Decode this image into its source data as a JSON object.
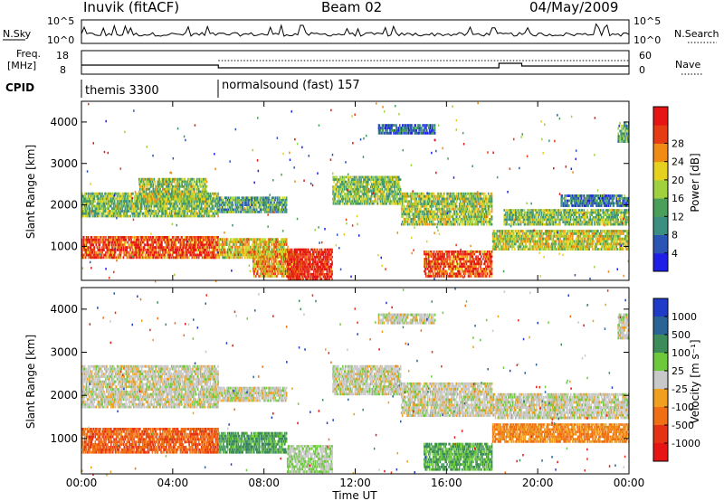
{
  "header": {
    "station": "Inuvik (fitACF)",
    "beam": "Beam 02",
    "date": "04/May/2009"
  },
  "labels": {
    "nsky": "N.Sky",
    "nsearch": "N.Search",
    "freq_line1": "Freq.",
    "freq_line2": "[MHz]",
    "nave": "Nave",
    "cpid": "CPID",
    "cpid_1": "themis 3300",
    "cpid_2": "normalsound (fast) 157"
  },
  "strip_ticks": {
    "noise_left": [
      "10^5",
      "10^0"
    ],
    "noise_right": [
      "10^5",
      "10^0"
    ],
    "freq_left": [
      "18",
      "8"
    ],
    "nave_right": [
      "60",
      "0"
    ]
  },
  "colors": {
    "ground_scatter": "#c8c8c8",
    "frame": "#000000"
  },
  "chart_data": [
    {
      "type": "heatmap",
      "name": "power",
      "xlabel": "",
      "ylabel": "Slant Range [km]",
      "yticks": [
        1000,
        2000,
        3000,
        4000
      ],
      "ylim": [
        180,
        4500
      ],
      "xlim": [
        0,
        24
      ],
      "colorbar_label": "Power [dB]",
      "colorbar_ticks": [
        "4",
        "8",
        "12",
        "16",
        "20",
        "24",
        "28"
      ],
      "colorbar_colors": [
        "#1e1ee6",
        "#2a55b4",
        "#3a8f82",
        "#4aa05a",
        "#9fd23c",
        "#e6d21e",
        "#f08c14",
        "#e63c14",
        "#e61414"
      ],
      "bands": [
        {
          "t0": 0.0,
          "t1": 6.0,
          "r0": 700,
          "r1": 1250,
          "level": 0.85
        },
        {
          "t0": 0.0,
          "t1": 6.0,
          "r0": 1700,
          "r1": 2300,
          "level": 0.45
        },
        {
          "t0": 2.5,
          "t1": 5.5,
          "r0": 2050,
          "r1": 2650,
          "level": 0.5
        },
        {
          "t0": 6.0,
          "t1": 9.0,
          "r0": 700,
          "r1": 1200,
          "level": 0.6
        },
        {
          "t0": 6.0,
          "t1": 9.0,
          "r0": 1800,
          "r1": 2200,
          "level": 0.35
        },
        {
          "t0": 7.5,
          "t1": 9.5,
          "r0": 250,
          "r1": 900,
          "level": 0.7
        },
        {
          "t0": 9.0,
          "t1": 11.0,
          "r0": 180,
          "r1": 950,
          "level": 0.95
        },
        {
          "t0": 11.0,
          "t1": 14.0,
          "r0": 2000,
          "r1": 2700,
          "level": 0.45
        },
        {
          "t0": 14.0,
          "t1": 18.0,
          "r0": 1500,
          "r1": 2300,
          "level": 0.5
        },
        {
          "t0": 15.0,
          "t1": 18.0,
          "r0": 250,
          "r1": 900,
          "level": 0.85
        },
        {
          "t0": 18.0,
          "t1": 24.0,
          "r0": 900,
          "r1": 1400,
          "level": 0.55
        },
        {
          "t0": 18.5,
          "t1": 24.0,
          "r0": 1500,
          "r1": 1900,
          "level": 0.45
        },
        {
          "t0": 21.0,
          "t1": 24.0,
          "r0": 1950,
          "r1": 2250,
          "level": 0.25
        },
        {
          "t0": 13.0,
          "t1": 15.5,
          "r0": 3700,
          "r1": 3950,
          "level": 0.2
        },
        {
          "t0": 23.5,
          "t1": 24.0,
          "r0": 3500,
          "r1": 4000,
          "level": 0.35
        }
      ]
    },
    {
      "type": "heatmap",
      "name": "velocity",
      "xlabel": "Time UT",
      "ylabel": "Slant Range [km]",
      "xticks": [
        "00:00",
        "04:00",
        "08:00",
        "12:00",
        "16:00",
        "20:00",
        "00:00"
      ],
      "yticks": [
        1000,
        2000,
        3000,
        4000
      ],
      "ylim": [
        180,
        4500
      ],
      "xlim": [
        0,
        24
      ],
      "colorbar_label": "Velocity [m s⁻¹]",
      "colorbar_ticks": [
        "1000",
        "500",
        "100",
        "25",
        "-25",
        "-100",
        "-500",
        "-1000"
      ],
      "colorbar_colors": [
        "#1e3cc8",
        "#2a6496",
        "#3c8c5a",
        "#6ec83c",
        "#c8c8c8",
        "#f0a01e",
        "#f06e14",
        "#e63214",
        "#e61414"
      ],
      "bands": [
        {
          "t0": 0.0,
          "t1": 6.0,
          "r0": 650,
          "r1": 1250,
          "v": -0.5
        },
        {
          "t0": 0.0,
          "t1": 6.0,
          "r0": 1700,
          "r1": 2700,
          "v": 0.0
        },
        {
          "t0": 6.0,
          "t1": 9.0,
          "r0": 650,
          "r1": 1150,
          "v": 0.4
        },
        {
          "t0": 6.0,
          "t1": 9.0,
          "r0": 1850,
          "r1": 2200,
          "v": 0.0
        },
        {
          "t0": 9.0,
          "t1": 11.0,
          "r0": 200,
          "r1": 850,
          "v": 0.1
        },
        {
          "t0": 11.0,
          "t1": 14.0,
          "r0": 2000,
          "r1": 2700,
          "v": 0.0
        },
        {
          "t0": 14.0,
          "t1": 18.0,
          "r0": 1500,
          "r1": 2300,
          "v": 0.0
        },
        {
          "t0": 15.0,
          "t1": 18.0,
          "r0": 250,
          "r1": 900,
          "v": 0.35
        },
        {
          "t0": 18.0,
          "t1": 24.0,
          "r0": 900,
          "r1": 1350,
          "v": -0.35
        },
        {
          "t0": 18.0,
          "t1": 24.0,
          "r0": 1450,
          "r1": 2050,
          "v": 0.0
        },
        {
          "t0": 13.0,
          "t1": 15.5,
          "r0": 3650,
          "r1": 3900,
          "v": 0.0
        },
        {
          "t0": 23.5,
          "t1": 24.0,
          "r0": 3300,
          "r1": 3900,
          "v": 0.0
        }
      ]
    }
  ]
}
